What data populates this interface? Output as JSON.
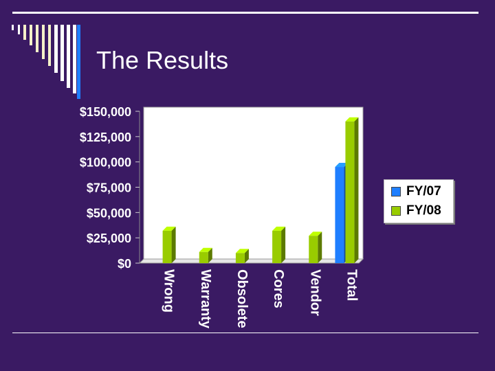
{
  "slide": {
    "title": "The Results"
  },
  "colors": {
    "background": "#3a1a63",
    "fy07": "#1f7fff",
    "fy08": "#99cc00",
    "plot_area": "#ffffff"
  },
  "chart_data": {
    "type": "bar",
    "title": "",
    "xlabel": "",
    "ylabel": "",
    "categories": [
      "Wrong",
      "Warranty",
      "Obsolete",
      "Cores",
      "Vendor",
      "Total"
    ],
    "series": [
      {
        "name": "FY/07",
        "values": [
          0,
          0,
          0,
          0,
          0,
          95000
        ]
      },
      {
        "name": "FY/08",
        "values": [
          32000,
          11000,
          10000,
          32000,
          27000,
          140000
        ]
      }
    ],
    "ylim": [
      0,
      150000
    ],
    "y_ticks": [
      0,
      25000,
      50000,
      75000,
      100000,
      125000,
      150000
    ],
    "y_tick_labels": [
      "$0",
      "$25,000",
      "$50,000",
      "$75,000",
      "$100,000",
      "$125,000",
      "$150,000"
    ],
    "legend_position": "right",
    "bar_style": "3d",
    "grid": false
  }
}
